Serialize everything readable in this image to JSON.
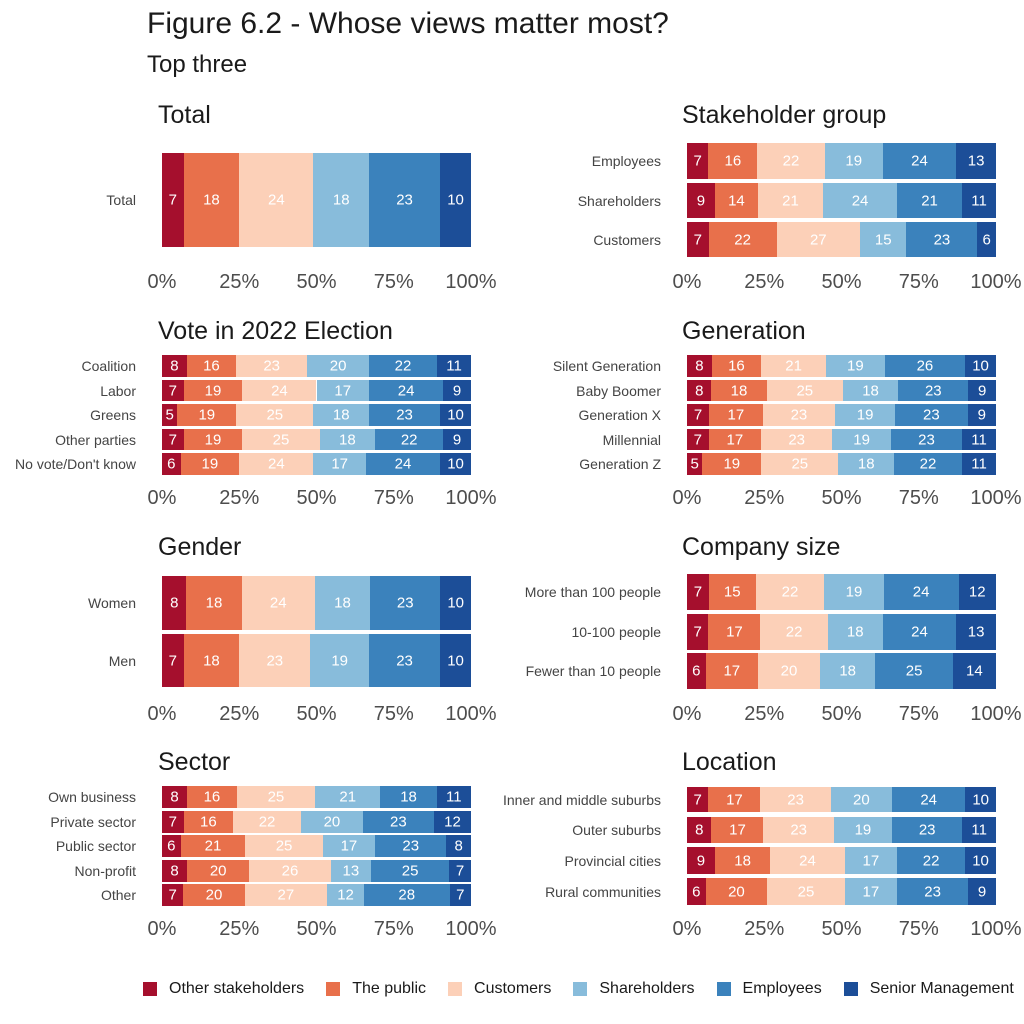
{
  "figure": {
    "title": "Figure 6.2 - Whose views matter most?",
    "subtitle": "Top three"
  },
  "legend": {
    "labels": [
      "Other stakeholders",
      "The public",
      "Customers",
      "Shareholders",
      "Employees",
      "Senior Management"
    ],
    "colors": [
      "#a50f2d",
      "#e8704b",
      "#fcd0b8",
      "#88bcdb",
      "#3b82bc",
      "#1c4e98"
    ]
  },
  "chart_data": [
    {
      "type": "bar",
      "title": "Total",
      "xlim": [
        0,
        100
      ],
      "x_ticks": [
        "0%",
        "25%",
        "50%",
        "75%",
        "100%"
      ],
      "categories": [
        "Total"
      ],
      "series": [
        {
          "name": "Other stakeholders",
          "values": [
            7
          ]
        },
        {
          "name": "The public",
          "values": [
            18
          ]
        },
        {
          "name": "Customers",
          "values": [
            24
          ]
        },
        {
          "name": "Shareholders",
          "values": [
            18
          ]
        },
        {
          "name": "Employees",
          "values": [
            23
          ]
        },
        {
          "name": "Senior Management",
          "values": [
            10
          ]
        }
      ]
    },
    {
      "type": "bar",
      "title": "Stakeholder group",
      "xlim": [
        0,
        100
      ],
      "x_ticks": [
        "0%",
        "25%",
        "50%",
        "75%",
        "100%"
      ],
      "categories": [
        "Employees",
        "Shareholders",
        "Customers"
      ],
      "series": [
        {
          "name": "Other stakeholders",
          "values": [
            7,
            9,
            7
          ]
        },
        {
          "name": "The public",
          "values": [
            16,
            14,
            22
          ]
        },
        {
          "name": "Customers",
          "values": [
            22,
            21,
            27
          ]
        },
        {
          "name": "Shareholders",
          "values": [
            19,
            24,
            15
          ]
        },
        {
          "name": "Employees",
          "values": [
            24,
            21,
            23
          ]
        },
        {
          "name": "Senior Management",
          "values": [
            13,
            11,
            6
          ]
        }
      ]
    },
    {
      "type": "bar",
      "title": "Vote in 2022 Election",
      "xlim": [
        0,
        100
      ],
      "x_ticks": [
        "0%",
        "25%",
        "50%",
        "75%",
        "100%"
      ],
      "categories": [
        "Coalition",
        "Labor",
        "Greens",
        "Other parties",
        "No vote/Don't know"
      ],
      "series": [
        {
          "name": "Other stakeholders",
          "values": [
            8,
            7,
            5,
            7,
            6
          ]
        },
        {
          "name": "The public",
          "values": [
            16,
            19,
            19,
            19,
            19
          ]
        },
        {
          "name": "Customers",
          "values": [
            23,
            24,
            25,
            25,
            24
          ]
        },
        {
          "name": "Shareholders",
          "values": [
            20,
            17,
            18,
            18,
            17
          ]
        },
        {
          "name": "Employees",
          "values": [
            22,
            24,
            23,
            22,
            24
          ]
        },
        {
          "name": "Senior Management",
          "values": [
            11,
            9,
            10,
            9,
            10
          ]
        }
      ]
    },
    {
      "type": "bar",
      "title": "Generation",
      "xlim": [
        0,
        100
      ],
      "x_ticks": [
        "0%",
        "25%",
        "50%",
        "75%",
        "100%"
      ],
      "categories": [
        "Silent Generation",
        "Baby Boomer",
        "Generation X",
        "Millennial",
        "Generation Z"
      ],
      "series": [
        {
          "name": "Other stakeholders",
          "values": [
            8,
            8,
            7,
            7,
            5
          ]
        },
        {
          "name": "The public",
          "values": [
            16,
            18,
            17,
            17,
            19
          ]
        },
        {
          "name": "Customers",
          "values": [
            21,
            25,
            23,
            23,
            25
          ]
        },
        {
          "name": "Shareholders",
          "values": [
            19,
            18,
            19,
            19,
            18
          ]
        },
        {
          "name": "Employees",
          "values": [
            26,
            23,
            23,
            23,
            22
          ]
        },
        {
          "name": "Senior Management",
          "values": [
            10,
            9,
            9,
            11,
            11
          ]
        }
      ]
    },
    {
      "type": "bar",
      "title": "Gender",
      "xlim": [
        0,
        100
      ],
      "x_ticks": [
        "0%",
        "25%",
        "50%",
        "75%",
        "100%"
      ],
      "categories": [
        "Women",
        "Men"
      ],
      "series": [
        {
          "name": "Other stakeholders",
          "values": [
            8,
            7
          ]
        },
        {
          "name": "The public",
          "values": [
            18,
            18
          ]
        },
        {
          "name": "Customers",
          "values": [
            24,
            23
          ]
        },
        {
          "name": "Shareholders",
          "values": [
            18,
            19
          ]
        },
        {
          "name": "Employees",
          "values": [
            23,
            23
          ]
        },
        {
          "name": "Senior Management",
          "values": [
            10,
            10
          ]
        }
      ]
    },
    {
      "type": "bar",
      "title": "Company size",
      "xlim": [
        0,
        100
      ],
      "x_ticks": [
        "0%",
        "25%",
        "50%",
        "75%",
        "100%"
      ],
      "categories": [
        "More than 100 people",
        "10-100 people",
        "Fewer than 10 people"
      ],
      "series": [
        {
          "name": "Other stakeholders",
          "values": [
            7,
            7,
            6
          ]
        },
        {
          "name": "The public",
          "values": [
            15,
            17,
            17
          ]
        },
        {
          "name": "Customers",
          "values": [
            22,
            22,
            20
          ]
        },
        {
          "name": "Shareholders",
          "values": [
            19,
            18,
            18
          ]
        },
        {
          "name": "Employees",
          "values": [
            24,
            24,
            25
          ]
        },
        {
          "name": "Senior Management",
          "values": [
            12,
            13,
            14
          ]
        }
      ]
    },
    {
      "type": "bar",
      "title": "Sector",
      "xlim": [
        0,
        100
      ],
      "x_ticks": [
        "0%",
        "25%",
        "50%",
        "75%",
        "100%"
      ],
      "categories": [
        "Own business",
        "Private sector",
        "Public sector",
        "Non-profit",
        "Other"
      ],
      "series": [
        {
          "name": "Other stakeholders",
          "values": [
            8,
            7,
            6,
            8,
            7
          ]
        },
        {
          "name": "The public",
          "values": [
            16,
            16,
            21,
            20,
            20
          ]
        },
        {
          "name": "Customers",
          "values": [
            25,
            22,
            25,
            26,
            27
          ]
        },
        {
          "name": "Shareholders",
          "values": [
            21,
            20,
            17,
            13,
            12
          ]
        },
        {
          "name": "Employees",
          "values": [
            18,
            23,
            23,
            25,
            28
          ]
        },
        {
          "name": "Senior Management",
          "values": [
            11,
            12,
            8,
            7,
            7
          ]
        }
      ]
    },
    {
      "type": "bar",
      "title": "Location",
      "xlim": [
        0,
        100
      ],
      "x_ticks": [
        "0%",
        "25%",
        "50%",
        "75%",
        "100%"
      ],
      "categories": [
        "Inner and middle suburbs",
        "Outer suburbs",
        "Provincial cities",
        "Rural communities"
      ],
      "series": [
        {
          "name": "Other stakeholders",
          "values": [
            7,
            8,
            9,
            6
          ]
        },
        {
          "name": "The public",
          "values": [
            17,
            17,
            18,
            20
          ]
        },
        {
          "name": "Customers",
          "values": [
            23,
            23,
            24,
            25
          ]
        },
        {
          "name": "Shareholders",
          "values": [
            20,
            19,
            17,
            17
          ]
        },
        {
          "name": "Employees",
          "values": [
            24,
            23,
            22,
            23
          ]
        },
        {
          "name": "Senior Management",
          "values": [
            10,
            11,
            10,
            9
          ]
        }
      ]
    }
  ]
}
